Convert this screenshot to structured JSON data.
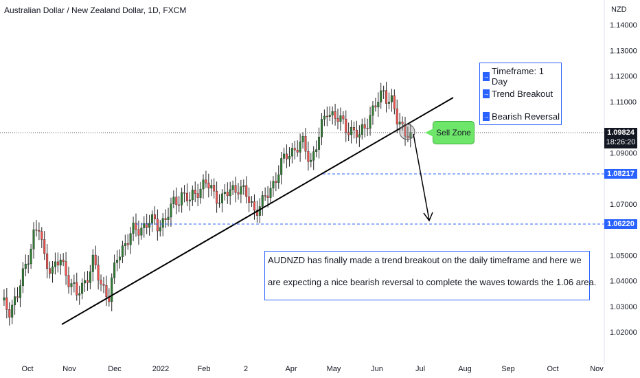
{
  "title": "Australian Dollar / New Zealand Dollar, 1D, FXCM",
  "unit": "NZD",
  "current_price": "1.09824",
  "countdown": "18:26:20",
  "level_high": "1.08217",
  "level_low": "1.06220",
  "info": [
    "Timeframe: 1 Day",
    "Trend Breakout",
    "Bearish Reversal"
  ],
  "sell_zone": "Sell Zone",
  "note": [
    "AUDNZD has finally made a trend breakout on the daily timeframe and here we",
    "are expecting a nice bearish reversal to complete the waves towards the 1.06 area."
  ],
  "colors": {
    "up": "#26a69a",
    "down": "#ef5350",
    "accent": "#2962ff",
    "candle_body": "#2e7d32"
  },
  "chart_data": {
    "type": "candlestick",
    "xlabels": [
      "Oct",
      "Nov",
      "Dec",
      "2022",
      "Feb",
      "2",
      "Apr",
      "May",
      "Jun",
      "Jul",
      "Aug",
      "Sep",
      "Oct",
      "Nov"
    ],
    "yticks": [
      "1.14000",
      "1.13000",
      "1.12000",
      "1.11000",
      "1.09000",
      "1.07000",
      "1.05000",
      "1.04000",
      "1.03000",
      "1.02000"
    ],
    "ylim": [
      1.015,
      1.145
    ],
    "anchors": [
      [
        0,
        1.031
      ],
      [
        3,
        1.029
      ],
      [
        6,
        1.034
      ],
      [
        9,
        1.046
      ],
      [
        12,
        1.058
      ],
      [
        14,
        1.06
      ],
      [
        16,
        1.049
      ],
      [
        19,
        1.044
      ],
      [
        22,
        1.048
      ],
      [
        25,
        1.041
      ],
      [
        28,
        1.034
      ],
      [
        31,
        1.04
      ],
      [
        34,
        1.047
      ],
      [
        37,
        1.039
      ],
      [
        40,
        1.034
      ],
      [
        43,
        1.049
      ],
      [
        46,
        1.055
      ],
      [
        49,
        1.059
      ],
      [
        52,
        1.061
      ],
      [
        55,
        1.063
      ],
      [
        58,
        1.062
      ],
      [
        61,
        1.064
      ],
      [
        64,
        1.07
      ],
      [
        67,
        1.074
      ],
      [
        70,
        1.071
      ],
      [
        73,
        1.076
      ],
      [
        76,
        1.078
      ],
      [
        79,
        1.074
      ],
      [
        82,
        1.072
      ],
      [
        85,
        1.075
      ],
      [
        88,
        1.077
      ],
      [
        91,
        1.073
      ],
      [
        94,
        1.068
      ],
      [
        97,
        1.07
      ],
      [
        100,
        1.076
      ],
      [
        103,
        1.083
      ],
      [
        106,
        1.089
      ],
      [
        109,
        1.092
      ],
      [
        112,
        1.093
      ],
      [
        115,
        1.087
      ],
      [
        118,
        1.096
      ],
      [
        121,
        1.107
      ],
      [
        124,
        1.104
      ],
      [
        127,
        1.101
      ],
      [
        130,
        1.099
      ],
      [
        133,
        1.096
      ],
      [
        136,
        1.103
      ],
      [
        139,
        1.108
      ],
      [
        142,
        1.114
      ],
      [
        145,
        1.11
      ],
      [
        147,
        1.102
      ],
      [
        150,
        1.099
      ],
      [
        152,
        1.098
      ]
    ],
    "breakout_level": 1.08217,
    "target_level": 1.0622
  }
}
